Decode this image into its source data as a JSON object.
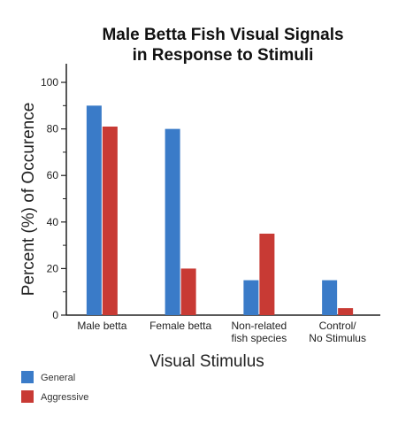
{
  "chart_data": {
    "type": "bar",
    "title_lines": [
      "Male Betta Fish Visual Signals",
      "in Response to Stimuli"
    ],
    "xlabel": "Visual Stimulus",
    "ylabel": "Percent (%) of Occurence",
    "categories": [
      [
        "Male betta"
      ],
      [
        "Female betta"
      ],
      [
        "Non-related",
        "fish species"
      ],
      [
        "Control/",
        "No Stimulus"
      ]
    ],
    "series": [
      {
        "name": "General",
        "color": "#3a7bc8",
        "values": [
          90,
          80,
          15,
          15
        ]
      },
      {
        "name": "Aggressive",
        "color": "#c83a34",
        "values": [
          81,
          20,
          35,
          3
        ]
      }
    ],
    "ylim": [
      0,
      108
    ],
    "yticks_labeled": [
      0,
      20,
      40,
      60,
      80,
      100
    ],
    "yticks_minor": [
      10,
      30,
      50,
      70,
      90
    ],
    "grid": false,
    "legend_position": "bottom-left"
  }
}
